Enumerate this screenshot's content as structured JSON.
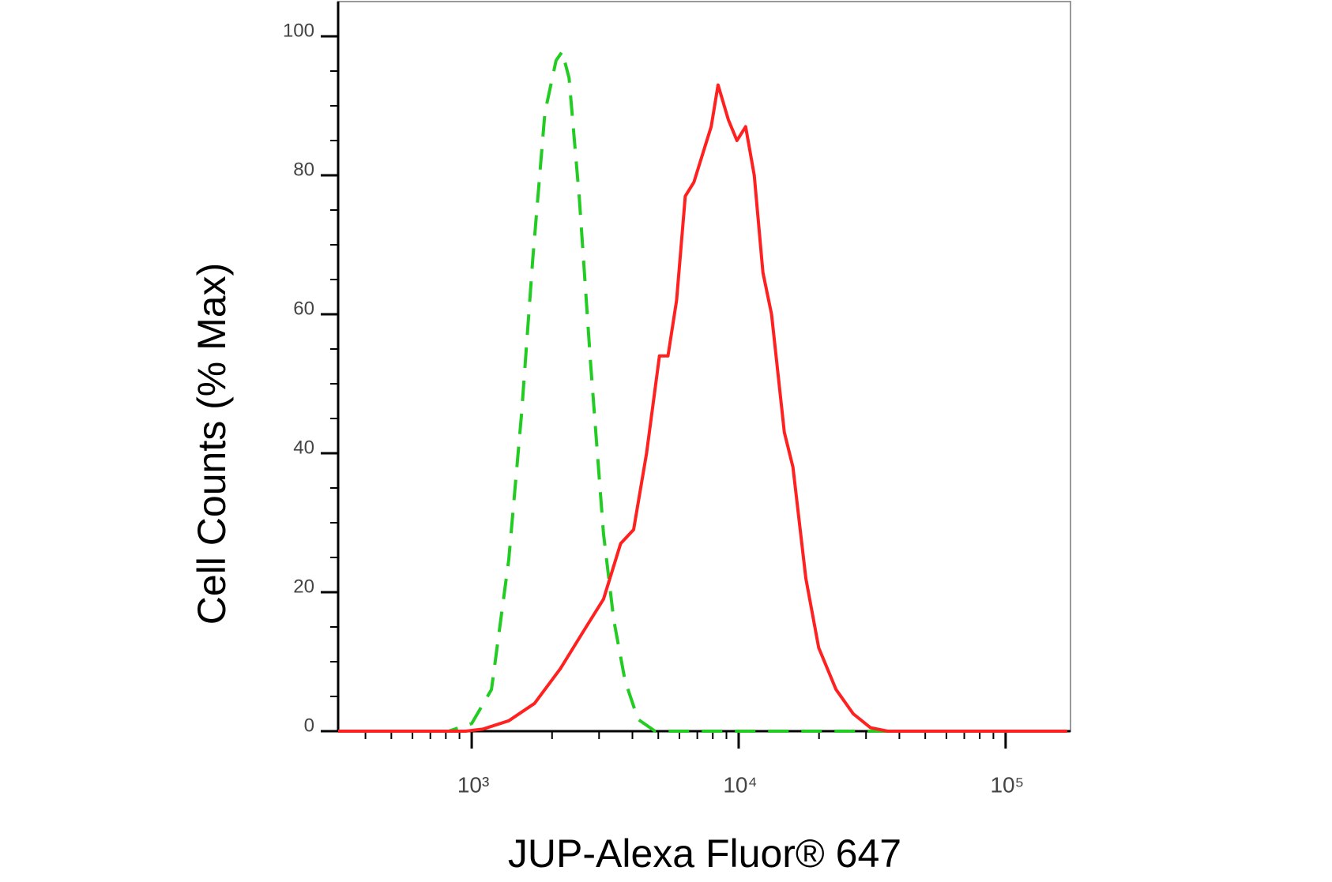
{
  "chart_data": {
    "type": "line",
    "xlabel": "JUP-Alexa Fluor® 647",
    "ylabel": "Cell Counts (% Max)",
    "xscale": "log",
    "xlim": [
      316,
      175000
    ],
    "ylim": [
      0,
      105
    ],
    "xticks": [
      {
        "value": 1000,
        "label": "10³"
      },
      {
        "value": 10000,
        "label": "10⁴"
      },
      {
        "value": 100000,
        "label": "10⁵"
      }
    ],
    "xminorticks": [
      400,
      500,
      600,
      700,
      800,
      900,
      2000,
      3000,
      4000,
      5000,
      6000,
      7000,
      8000,
      9000,
      20000,
      30000,
      40000,
      50000,
      60000,
      70000,
      80000,
      90000
    ],
    "yticks": [
      0,
      20,
      40,
      60,
      80,
      100
    ],
    "yminorticks": [
      5,
      10,
      15,
      25,
      30,
      35,
      45,
      50,
      55,
      65,
      70,
      75,
      85,
      90,
      95
    ],
    "series": [
      {
        "color": "#22cc22",
        "dashed": true,
        "x": [
          316,
          819,
          1000,
          1186,
          1377,
          1538,
          1694,
          1880,
          2070,
          2182,
          2316,
          2531,
          2787,
          3118,
          3406,
          3752,
          4197,
          4865,
          170000
        ],
        "values": [
          0,
          0,
          1.1,
          6,
          24.7,
          45.7,
          68,
          89,
          96.5,
          97.8,
          94,
          76.7,
          53,
          28.4,
          16,
          7.3,
          1.7,
          0,
          0
        ]
      },
      {
        "color": "#ff2020",
        "dashed": false,
        "x": [
          316,
          949,
          1101,
          1377,
          1719,
          2148,
          2684,
          3118,
          3614,
          4040,
          4518,
          5049,
          5437,
          5855,
          6309,
          6797,
          7322,
          7888,
          8370,
          9146,
          9855,
          10617,
          11440,
          12326,
          13280,
          14830,
          15978,
          17850,
          19950,
          23160,
          26870,
          31170,
          36160,
          170000
        ],
        "values": [
          0,
          0,
          0.3,
          1.5,
          4,
          9,
          15,
          19,
          27,
          29,
          40,
          54,
          54,
          62,
          77,
          79,
          83,
          87,
          93,
          88,
          85,
          87,
          80,
          66,
          60,
          43,
          38,
          22,
          12,
          6,
          2.5,
          0.5,
          0,
          0
        ]
      }
    ]
  }
}
